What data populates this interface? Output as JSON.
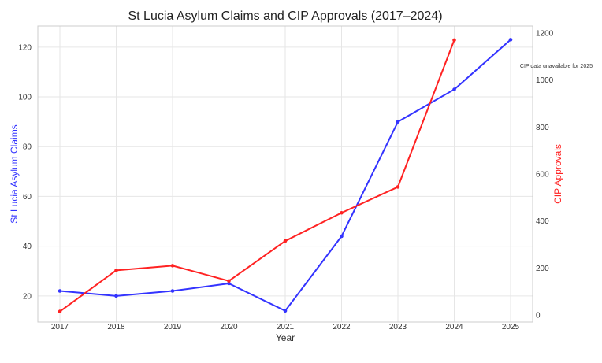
{
  "chart_data": {
    "type": "line",
    "title": "St Lucia Asylum Claims and CIP Approvals (2017–2024)",
    "xlabel": "Year",
    "ylabel_left": "St Lucia Asylum Claims",
    "ylabel_right": "CIP Approvals",
    "x": [
      2017,
      2018,
      2019,
      2020,
      2021,
      2022,
      2023,
      2024,
      2025
    ],
    "x_tick_labels": [
      "2017",
      "2018",
      "2019",
      "2020",
      "2021",
      "2022",
      "2023",
      "2024",
      "2025"
    ],
    "ylim_left": [
      9.5,
      128.5
    ],
    "yticks_left": [
      20,
      40,
      60,
      80,
      100,
      120
    ],
    "ylim_right": [
      -30,
      1230
    ],
    "yticks_right": [
      0,
      200,
      400,
      600,
      800,
      1000,
      1200
    ],
    "grid": true,
    "series": [
      {
        "name": "St Lucia Asylum Claims",
        "axis": "left",
        "color": "#3333ff",
        "x": [
          2017,
          2018,
          2019,
          2020,
          2021,
          2022,
          2023,
          2024,
          2025
        ],
        "values": [
          22,
          20,
          22,
          25,
          14,
          44,
          90,
          103,
          123
        ]
      },
      {
        "name": "CIP Approvals",
        "axis": "right",
        "color": "#ff2222",
        "x": [
          2017,
          2018,
          2019,
          2020,
          2021,
          2022,
          2023,
          2024
        ],
        "values": [
          15,
          190,
          210,
          145,
          315,
          435,
          545,
          1170
        ]
      }
    ],
    "annotations": [
      {
        "text": "CIP data unavailable for 2025"
      }
    ]
  },
  "colors": {
    "left_axis_label": "#3333ff",
    "right_axis_label": "#ff2222",
    "grid": "#e6e6e6",
    "frame": "#cccccc"
  }
}
